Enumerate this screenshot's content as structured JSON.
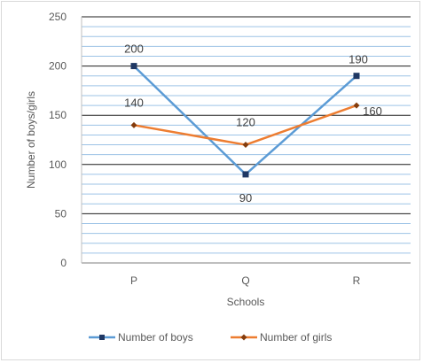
{
  "chart_data": {
    "type": "line",
    "title": "",
    "xlabel": "Schools",
    "ylabel": "Number of boys/girls",
    "categories": [
      "P",
      "Q",
      "R"
    ],
    "ylim": [
      0,
      250
    ],
    "yticks": [
      0,
      50,
      100,
      150,
      200,
      250
    ],
    "minor_grid_step": 10,
    "grid": true,
    "legend_position": "bottom",
    "series": [
      {
        "name": "Number of boys",
        "values": [
          200,
          90,
          190
        ],
        "color": "#5b9bd5",
        "marker": "square",
        "labels": [
          "200",
          "90",
          "190"
        ]
      },
      {
        "name": "Number of girls",
        "values": [
          140,
          120,
          160
        ],
        "color": "#ed7d31",
        "marker": "diamond",
        "labels": [
          "140",
          "120",
          "160"
        ]
      }
    ]
  }
}
